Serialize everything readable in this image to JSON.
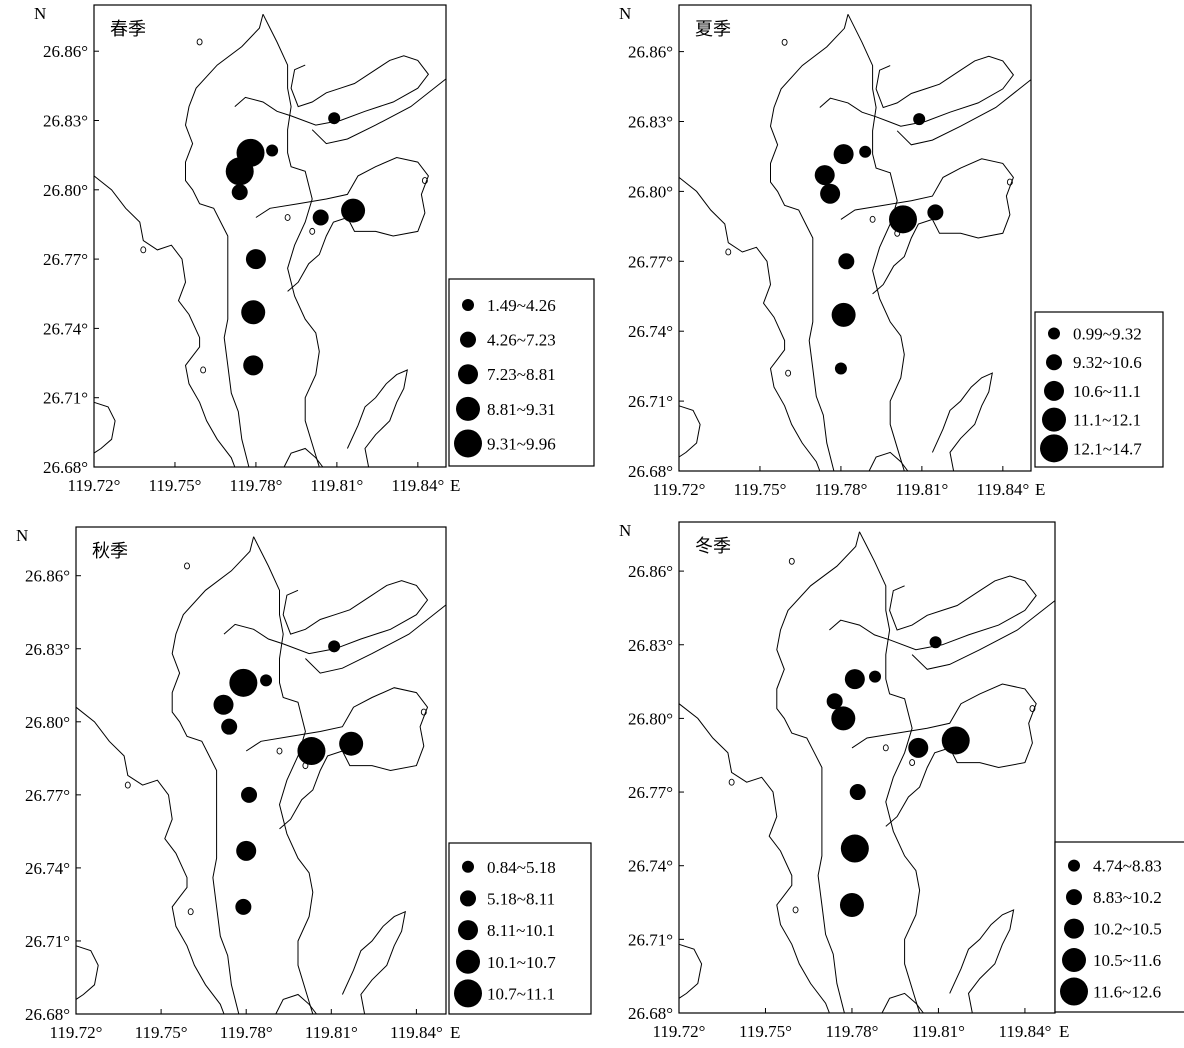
{
  "common": {
    "north_label": "N",
    "east_label": "E",
    "lat_ticks": [
      "26.86°",
      "26.83°",
      "26.80°",
      "26.77°",
      "26.74°",
      "26.71°",
      "26.68°"
    ],
    "lon_ticks": [
      "119.72°",
      "119.75°",
      "119.78°",
      "119.81°",
      "119.84°"
    ],
    "colors": {
      "marker": "#000000",
      "coast": "#000000",
      "background": "#ffffff"
    }
  },
  "panels": [
    {
      "title": "春季",
      "legend": [
        "1.49~4.26",
        "4.26~7.23",
        "7.23~8.81",
        "8.81~9.31",
        "9.31~9.96"
      ],
      "stations": [
        {
          "lon": 119.809,
          "lat": 26.831,
          "cls": 1
        },
        {
          "lon": 119.778,
          "lat": 26.816,
          "cls": 5
        },
        {
          "lon": 119.786,
          "lat": 26.817,
          "cls": 1
        },
        {
          "lon": 119.774,
          "lat": 26.808,
          "cls": 5
        },
        {
          "lon": 119.774,
          "lat": 26.799,
          "cls": 2
        },
        {
          "lon": 119.816,
          "lat": 26.791,
          "cls": 4
        },
        {
          "lon": 119.804,
          "lat": 26.788,
          "cls": 2
        },
        {
          "lon": 119.78,
          "lat": 26.77,
          "cls": 3
        },
        {
          "lon": 119.779,
          "lat": 26.747,
          "cls": 4
        },
        {
          "lon": 119.779,
          "lat": 26.724,
          "cls": 3
        }
      ]
    },
    {
      "title": "夏季",
      "legend": [
        "0.99~9.32",
        "9.32~10.6",
        "10.6~11.1",
        "11.1~12.1",
        "12.1~14.7"
      ],
      "stations": [
        {
          "lon": 119.809,
          "lat": 26.831,
          "cls": 1
        },
        {
          "lon": 119.781,
          "lat": 26.816,
          "cls": 3
        },
        {
          "lon": 119.789,
          "lat": 26.817,
          "cls": 1
        },
        {
          "lon": 119.774,
          "lat": 26.807,
          "cls": 3
        },
        {
          "lon": 119.776,
          "lat": 26.799,
          "cls": 3
        },
        {
          "lon": 119.803,
          "lat": 26.788,
          "cls": 5
        },
        {
          "lon": 119.815,
          "lat": 26.791,
          "cls": 2
        },
        {
          "lon": 119.782,
          "lat": 26.77,
          "cls": 2
        },
        {
          "lon": 119.781,
          "lat": 26.747,
          "cls": 4
        },
        {
          "lon": 119.78,
          "lat": 26.724,
          "cls": 1
        }
      ]
    },
    {
      "title": "秋季",
      "legend": [
        "0.84~5.18",
        "5.18~8.11",
        "8.11~10.1",
        "10.1~10.7",
        "10.7~11.1"
      ],
      "stations": [
        {
          "lon": 119.811,
          "lat": 26.831,
          "cls": 1
        },
        {
          "lon": 119.779,
          "lat": 26.816,
          "cls": 5
        },
        {
          "lon": 119.787,
          "lat": 26.817,
          "cls": 1
        },
        {
          "lon": 119.772,
          "lat": 26.807,
          "cls": 3
        },
        {
          "lon": 119.774,
          "lat": 26.798,
          "cls": 2
        },
        {
          "lon": 119.803,
          "lat": 26.788,
          "cls": 5
        },
        {
          "lon": 119.817,
          "lat": 26.791,
          "cls": 4
        },
        {
          "lon": 119.781,
          "lat": 26.77,
          "cls": 2
        },
        {
          "lon": 119.78,
          "lat": 26.747,
          "cls": 3
        },
        {
          "lon": 119.779,
          "lat": 26.724,
          "cls": 2
        }
      ]
    },
    {
      "title": "冬季",
      "legend": [
        "4.74~8.83",
        "8.83~10.2",
        "10.2~10.5",
        "10.5~11.6",
        "11.6~12.6"
      ],
      "stations": [
        {
          "lon": 119.809,
          "lat": 26.831,
          "cls": 1
        },
        {
          "lon": 119.781,
          "lat": 26.816,
          "cls": 3
        },
        {
          "lon": 119.788,
          "lat": 26.817,
          "cls": 1
        },
        {
          "lon": 119.774,
          "lat": 26.807,
          "cls": 2
        },
        {
          "lon": 119.777,
          "lat": 26.8,
          "cls": 4
        },
        {
          "lon": 119.803,
          "lat": 26.788,
          "cls": 3
        },
        {
          "lon": 119.816,
          "lat": 26.791,
          "cls": 5
        },
        {
          "lon": 119.782,
          "lat": 26.77,
          "cls": 2
        },
        {
          "lon": 119.781,
          "lat": 26.747,
          "cls": 5
        },
        {
          "lon": 119.78,
          "lat": 26.724,
          "cls": 4
        }
      ]
    }
  ]
}
